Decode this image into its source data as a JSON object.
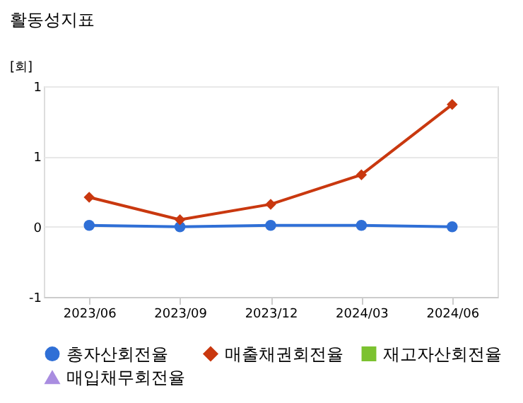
{
  "chart_data": {
    "type": "line",
    "title": "활동성지표",
    "ylabel": "[회]",
    "categories": [
      "2023/06",
      "2023/09",
      "2023/12",
      "2024/03",
      "2024/06"
    ],
    "series": [
      {
        "name": "총자산회전율",
        "color": "#2f6fd6",
        "marker": "circle",
        "values": [
          0.01,
          0.0,
          0.01,
          0.01,
          0.0
        ]
      },
      {
        "name": "매출채권회전율",
        "color": "#c9380f",
        "marker": "diamond",
        "values": [
          0.21,
          0.05,
          0.16,
          0.37,
          0.87
        ]
      },
      {
        "name": "재고자산회전율",
        "color": "#7cc230",
        "marker": "square",
        "values": [
          null,
          null,
          null,
          null,
          null
        ]
      },
      {
        "name": "매입채무회전율",
        "color": "#a98de0",
        "marker": "triangle",
        "values": [
          null,
          null,
          null,
          null,
          null
        ]
      }
    ],
    "ylim": [
      -0.5,
      1.0
    ],
    "yticks": [
      {
        "value": -0.5,
        "label": "-1"
      },
      0,
      {
        "value": 0.5,
        "label": "1"
      },
      {
        "value": 1.0,
        "label": "1"
      }
    ],
    "grid": "y",
    "legend": "bottom"
  }
}
